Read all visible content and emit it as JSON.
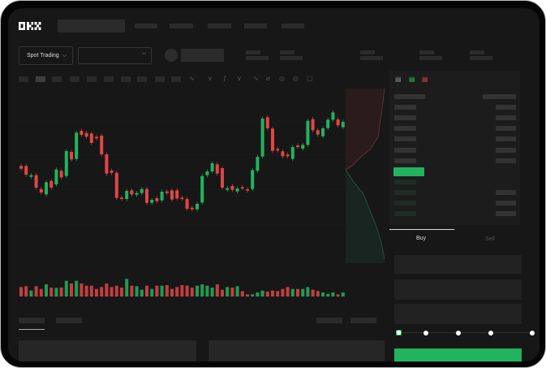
{
  "header": {
    "logo": "OKX"
  },
  "market": {
    "trade_type_label": "Spot Trading",
    "pair_selector_value": ""
  },
  "trade_panel": {
    "tabs": [
      {
        "label": "Buy",
        "active": true
      },
      {
        "label": "Sell",
        "active": false
      }
    ],
    "leverage_slider_percent": 0
  },
  "colors": {
    "up": "#22b35e",
    "down": "#e04646",
    "background": "#171717",
    "accent_button": "#22b35e"
  },
  "chart_data": {
    "type": "candlestick",
    "note_units": "relative price (no axis printed)",
    "candles": [
      [
        200,
        190
      ],
      [
        200,
        168
      ],
      [
        160,
        166
      ],
      [
        166,
        120
      ],
      [
        115,
        102
      ],
      [
        95,
        140
      ],
      [
        145,
        120
      ],
      [
        132,
        187
      ],
      [
        182,
        158
      ],
      [
        163,
        255
      ],
      [
        252,
        224
      ],
      [
        226,
        323
      ],
      [
        330,
        315
      ],
      [
        322,
        308
      ],
      [
        320,
        285
      ],
      [
        308,
        302
      ],
      [
        312,
        243
      ],
      [
        243,
        172
      ],
      [
        183,
        175
      ],
      [
        175,
        82
      ],
      [
        83,
        78
      ],
      [
        78,
        108
      ],
      [
        110,
        95
      ],
      [
        94,
        100
      ],
      [
        100,
        115
      ],
      [
        115,
        64
      ],
      [
        64,
        75
      ],
      [
        81,
        70
      ],
      [
        73,
        105
      ],
      [
        106,
        100
      ],
      [
        110,
        76
      ],
      [
        110,
        80
      ],
      [
        83,
        80
      ],
      [
        78,
        42
      ],
      [
        46,
        40
      ],
      [
        40,
        60
      ],
      [
        65,
        163
      ],
      [
        166,
        180
      ],
      [
        180,
        210
      ],
      [
        206,
        172
      ],
      [
        192,
        120
      ],
      [
        112,
        118
      ],
      [
        126,
        112
      ],
      [
        106,
        117
      ],
      [
        122,
        118
      ],
      [
        114,
        110
      ],
      [
        115,
        185
      ],
      [
        182,
        234
      ],
      [
        235,
        375
      ],
      [
        380,
        339
      ],
      [
        338,
        256
      ],
      [
        263,
        257
      ],
      [
        254,
        236
      ],
      [
        242,
        236
      ],
      [
        226,
        270
      ],
      [
        276,
        270
      ],
      [
        264,
        278
      ],
      [
        278,
        367
      ],
      [
        373,
        332
      ],
      [
        332,
        316
      ],
      [
        310,
        339
      ],
      [
        340,
        371
      ],
      [
        371,
        398
      ],
      [
        372,
        350
      ],
      [
        343,
        363
      ]
    ],
    "volumes": [
      35,
      38,
      22,
      38,
      28,
      45,
      33,
      32,
      33,
      58,
      48,
      58,
      48,
      40,
      40,
      28,
      35,
      48,
      35,
      40,
      33,
      65,
      40,
      38,
      25,
      40,
      28,
      40,
      40,
      42,
      28,
      35,
      42,
      40,
      33,
      40,
      45,
      40,
      33,
      45,
      25,
      35,
      33,
      38,
      20,
      8,
      8,
      15,
      22,
      18,
      22,
      20,
      28,
      35,
      28,
      28,
      28,
      35,
      25,
      20,
      15,
      10,
      15,
      8,
      15
    ]
  }
}
